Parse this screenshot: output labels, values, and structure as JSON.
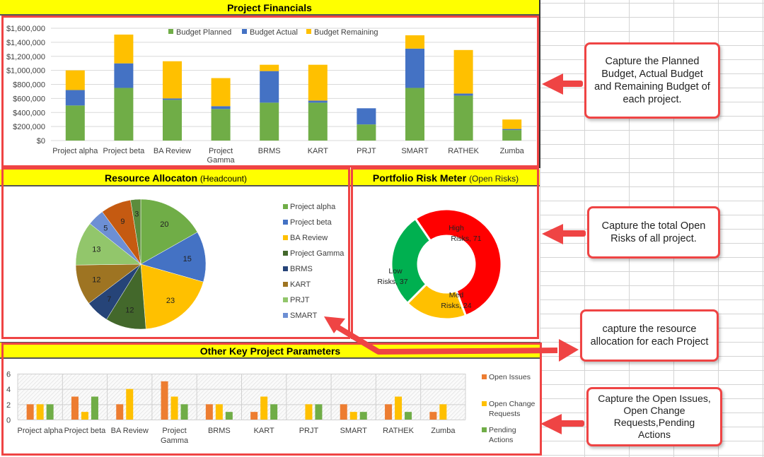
{
  "financials": {
    "title": "Project Financials",
    "y_ticks": [
      "$1,600,000",
      "$1,400,000",
      "$1,200,000",
      "$1,000,000",
      "$800,000",
      "$600,000",
      "$400,000",
      "$200,000",
      "$0"
    ],
    "legend": [
      "Budget Planned",
      "Budget Actual",
      "Budget Remaining"
    ],
    "colors": [
      "#70ad47",
      "#4472c4",
      "#ffc000"
    ]
  },
  "resource": {
    "title": "Resource Allocaton",
    "subtitle": "(Headcount)",
    "legend": [
      "Project alpha",
      "Project beta",
      "BA Review",
      "Project Gamma",
      "BRMS",
      "KART",
      "PRJT",
      "SMART"
    ]
  },
  "risk": {
    "title": "Portfolio Risk Meter",
    "subtitle": "(Open Risks)",
    "labels": {
      "high_1": "High",
      "high_2": "Risks, 71",
      "med_1": "Med",
      "med_2": "Risks, 24",
      "low_1": "Low",
      "low_2": "Risks, 37"
    }
  },
  "params": {
    "title": "Other Key Project Parameters",
    "y_ticks": [
      "6",
      "4",
      "2",
      "0"
    ],
    "legend": {
      "issues": "Open Issues",
      "changes_1": "Open Change",
      "changes_2": "Requests",
      "actions_1": "Pending",
      "actions_2": "Actions"
    }
  },
  "callouts": {
    "financials": [
      "Capture the Planned",
      "Budget, Actual Budget",
      "and Remaining Budget of",
      "each project."
    ],
    "risk": [
      "Capture the total Open",
      "Risks of all project."
    ],
    "resource": [
      "capture the resource",
      "allocation for each Project"
    ],
    "params": [
      "Capture the Open Issues,",
      "Open Change",
      "Requests,Pending",
      "Actions"
    ]
  },
  "categories_wrapped": {
    "Project alpha": [
      "Project alpha"
    ],
    "Project beta": [
      "Project beta"
    ],
    "BA Review": [
      "BA Review"
    ],
    "Project Gamma": [
      "Project",
      "Gamma"
    ],
    "BRMS": [
      "BRMS"
    ],
    "KART": [
      "KART"
    ],
    "PRJT": [
      "PRJT"
    ],
    "SMART": [
      "SMART"
    ],
    "RATHEK": [
      "RATHEK"
    ],
    "Zumba": [
      "Zumba"
    ]
  },
  "chart_data": [
    {
      "type": "bar",
      "stacked": true,
      "title": "Project Financials",
      "xlabel": "",
      "ylabel": "",
      "ylim": [
        0,
        1600000
      ],
      "grid": true,
      "legend_position": "top",
      "categories": [
        "Project alpha",
        "Project beta",
        "BA Review",
        "Project Gamma",
        "BRMS",
        "KART",
        "PRJT",
        "SMART",
        "RATHEK",
        "Zumba"
      ],
      "series": [
        {
          "name": "Budget Planned",
          "color": "#70ad47",
          "values": [
            500000,
            750000,
            580000,
            450000,
            540000,
            540000,
            230000,
            750000,
            640000,
            150000
          ]
        },
        {
          "name": "Budget Actual",
          "color": "#4472c4",
          "values": [
            220000,
            350000,
            20000,
            40000,
            450000,
            30000,
            230000,
            560000,
            30000,
            15000
          ]
        },
        {
          "name": "Budget Remaining",
          "color": "#ffc000",
          "values": [
            280000,
            410000,
            530000,
            400000,
            90000,
            510000,
            0,
            190000,
            620000,
            135000
          ]
        }
      ]
    },
    {
      "type": "pie",
      "title": "Resource Allocaton (Headcount)",
      "legend_position": "right",
      "categories": [
        "Project alpha",
        "Project beta",
        "BA Review",
        "Project Gamma",
        "BRMS",
        "KART",
        "PRJT",
        "SMART",
        "RATHEK",
        "Zumba"
      ],
      "values": [
        20,
        15,
        23,
        12,
        7,
        12,
        13,
        5,
        9,
        3
      ],
      "colors": [
        "#70ad47",
        "#4472c4",
        "#ffc000",
        "#43682b",
        "#264478",
        "#9e7422",
        "#92c66b",
        "#6d8fd4",
        "#c55a11",
        "#5b8c3c"
      ]
    },
    {
      "type": "pie",
      "donut": true,
      "title": "Portfolio Risk Meter (Open Risks)",
      "categories": [
        "High Risks",
        "Med Risks",
        "Low Risks"
      ],
      "values": [
        71,
        24,
        37
      ],
      "colors": [
        "#ff0000",
        "#ffc000",
        "#00b050"
      ]
    },
    {
      "type": "bar",
      "title": "Other Key Project Parameters",
      "xlabel": "",
      "ylabel": "",
      "ylim": [
        0,
        6
      ],
      "grid": true,
      "legend_position": "right",
      "categories": [
        "Project alpha",
        "Project beta",
        "BA Review",
        "Project Gamma",
        "BRMS",
        "KART",
        "PRJT",
        "SMART",
        "RATHEK",
        "Zumba"
      ],
      "series": [
        {
          "name": "Open Issues",
          "color": "#ed7d31",
          "values": [
            2,
            3,
            2,
            5,
            2,
            1,
            0,
            2,
            2,
            1
          ]
        },
        {
          "name": "Open Change Requests",
          "color": "#ffc000",
          "values": [
            2,
            1,
            4,
            3,
            2,
            3,
            2,
            1,
            3,
            2
          ]
        },
        {
          "name": "Pending Actions",
          "color": "#70ad47",
          "values": [
            2,
            3,
            0,
            2,
            1,
            2,
            2,
            1,
            1,
            0
          ]
        }
      ]
    }
  ]
}
